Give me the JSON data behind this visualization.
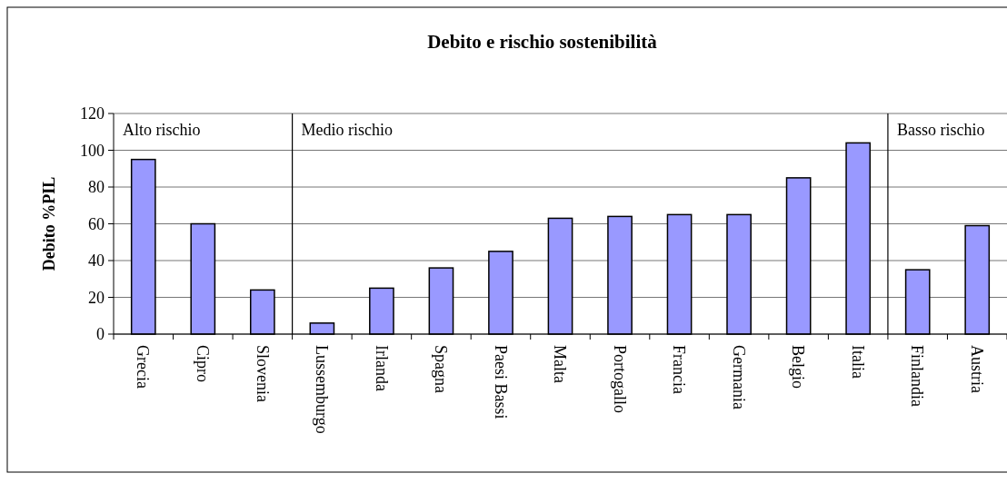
{
  "chart_data": {
    "type": "bar",
    "title": "Debito e rischio sostenibilità",
    "ylabel": "Debito %PIL",
    "categories": [
      "Grecia",
      "Cipro",
      "Slovenia",
      "Lussemburgo",
      "Irlanda",
      "Spagna",
      "Paesi Bassi",
      "Malta",
      "Portogallo",
      "Francia",
      "Germania",
      "Belgio",
      "Italia",
      "Finlandia",
      "Austria"
    ],
    "values": [
      95,
      60,
      24,
      6,
      25,
      36,
      45,
      63,
      64,
      65,
      65,
      85,
      104,
      35,
      59
    ],
    "color": "#9999ff",
    "ylim": [
      0,
      120
    ],
    "yticks": [
      0,
      20,
      40,
      60,
      80,
      100,
      120
    ],
    "grid": "y",
    "annotations": [
      "Alto rischio",
      "Medio rischio",
      "Basso rischio"
    ]
  }
}
